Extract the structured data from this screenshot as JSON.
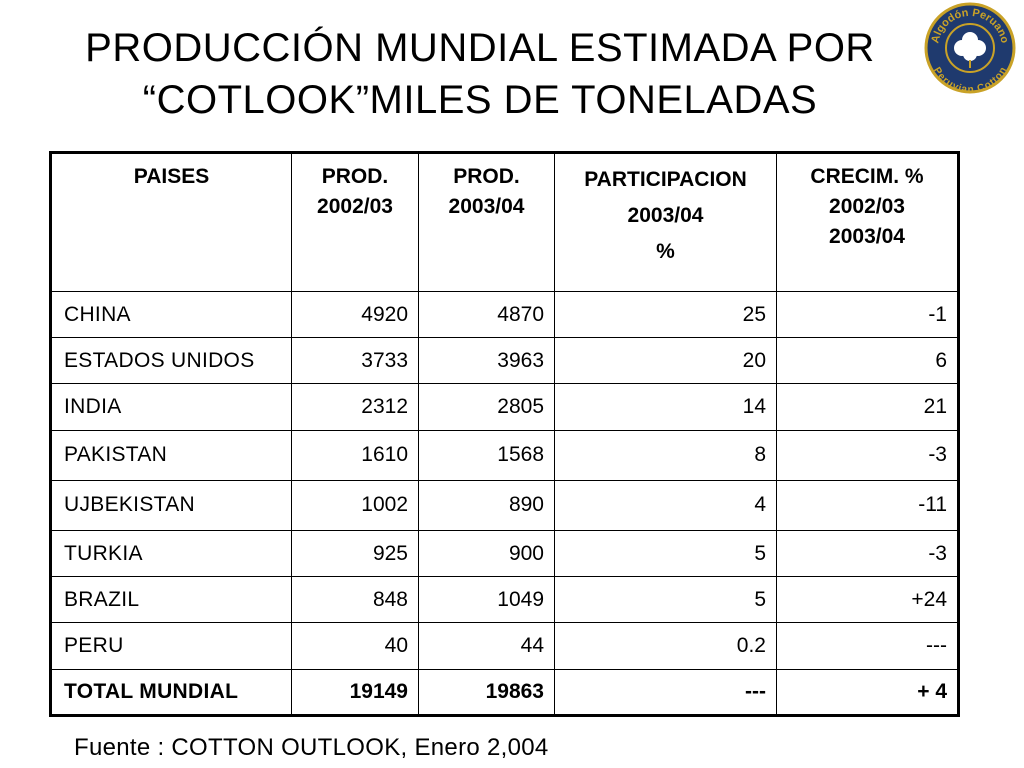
{
  "title": {
    "line1": "PRODUCCIÓN MUNDIAL ESTIMADA POR",
    "line2": "“COTLOOK”MILES DE TONELADAS"
  },
  "logo": {
    "text_top": "Algodón Peruano",
    "text_bottom": "Peruvian Cotton",
    "colors": {
      "ring": "#1f3a6e",
      "gold": "#c9a227",
      "boll": "#ffffff"
    }
  },
  "table": {
    "headers": [
      [
        "PAISES"
      ],
      [
        "PROD.",
        "2002/03"
      ],
      [
        "PROD.",
        "2003/04"
      ],
      [
        "PARTICIPACION",
        "2003/04",
        "%"
      ],
      [
        "CRECIM. %",
        "2002/03",
        "2003/04"
      ]
    ],
    "rows": [
      [
        "CHINA",
        "4920",
        "4870",
        "25",
        "-1"
      ],
      [
        "ESTADOS UNIDOS",
        "3733",
        "3963",
        "20",
        "6"
      ],
      [
        "INDIA",
        "2312",
        "2805",
        "14",
        "21"
      ],
      [
        "PAKISTAN",
        "1610",
        "1568",
        "8",
        "-3"
      ],
      [
        "UJBEKISTAN",
        "1002",
        "890",
        "4",
        "-11"
      ],
      [
        "TURKIA",
        "925",
        "900",
        "5",
        "-3"
      ],
      [
        "BRAZIL",
        "848",
        "1049",
        "5",
        "+24"
      ],
      [
        "PERU",
        "40",
        "44",
        "0.2",
        "---"
      ]
    ],
    "total": [
      "TOTAL MUNDIAL",
      "19149",
      "19863",
      "---",
      "+ 4"
    ]
  },
  "source": "Fuente : COTTON OUTLOOK,  Enero 2,004"
}
